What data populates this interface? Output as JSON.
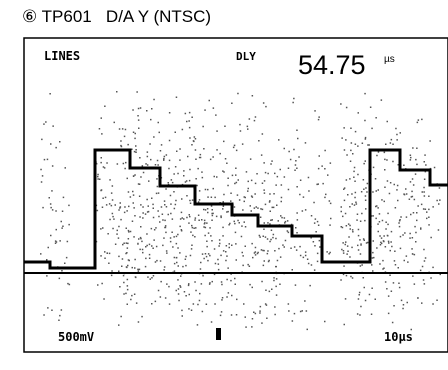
{
  "title": "⑥ TP601   D/A Y (NTSC)",
  "screen": {
    "top_left": "LINES",
    "delay_label": "DLY",
    "delay_value": "54.75",
    "delay_unit": "µs",
    "volts_div": "500mV",
    "time_div": "10µs"
  }
}
